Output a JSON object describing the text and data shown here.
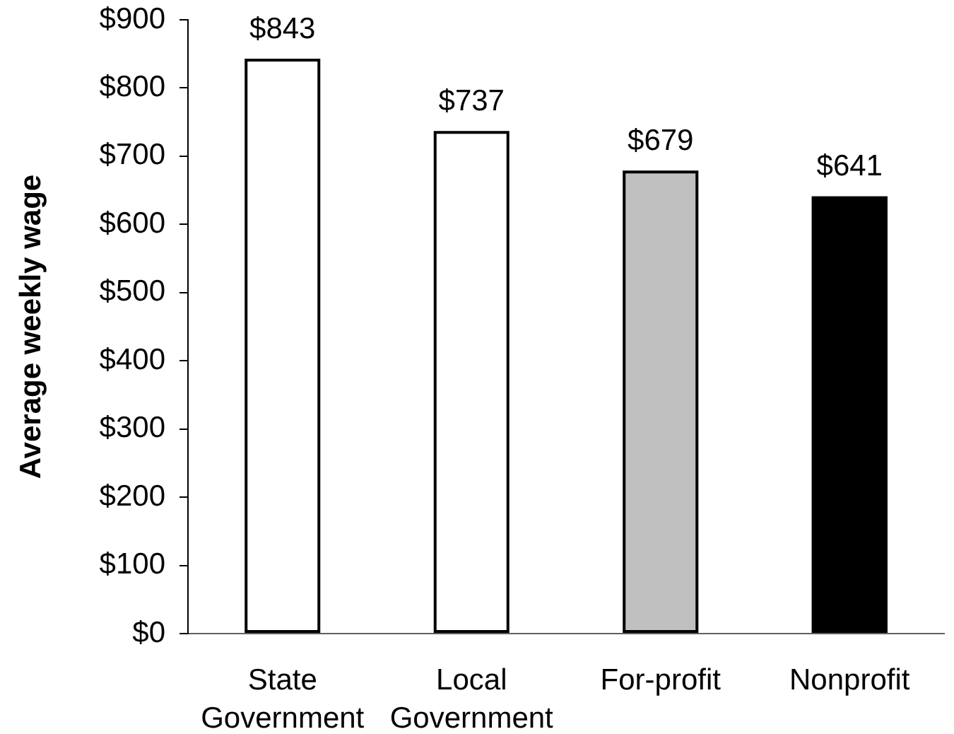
{
  "chart_data": {
    "type": "bar",
    "ylabel": "Average weekly wage",
    "categories": [
      "State Government",
      "Local Government",
      "For-profit",
      "Nonprofit"
    ],
    "values": [
      843,
      737,
      679,
      641
    ],
    "colors": [
      "#ffffff",
      "#ffffff",
      "#c0c0c0",
      "#000000"
    ],
    "value_labels": [
      "$843",
      "$737",
      "$679",
      "$641"
    ],
    "ylim": [
      0,
      900
    ],
    "yticks": [
      {
        "value": 0,
        "label": "$0"
      },
      {
        "value": 100,
        "label": "$100"
      },
      {
        "value": 200,
        "label": "$200"
      },
      {
        "value": 300,
        "label": "$300"
      },
      {
        "value": 400,
        "label": "$400"
      },
      {
        "value": 500,
        "label": "$500"
      },
      {
        "value": 600,
        "label": "$600"
      },
      {
        "value": 700,
        "label": "$700"
      },
      {
        "value": 800,
        "label": "$800"
      },
      {
        "value": 900,
        "label": "$900"
      }
    ]
  }
}
